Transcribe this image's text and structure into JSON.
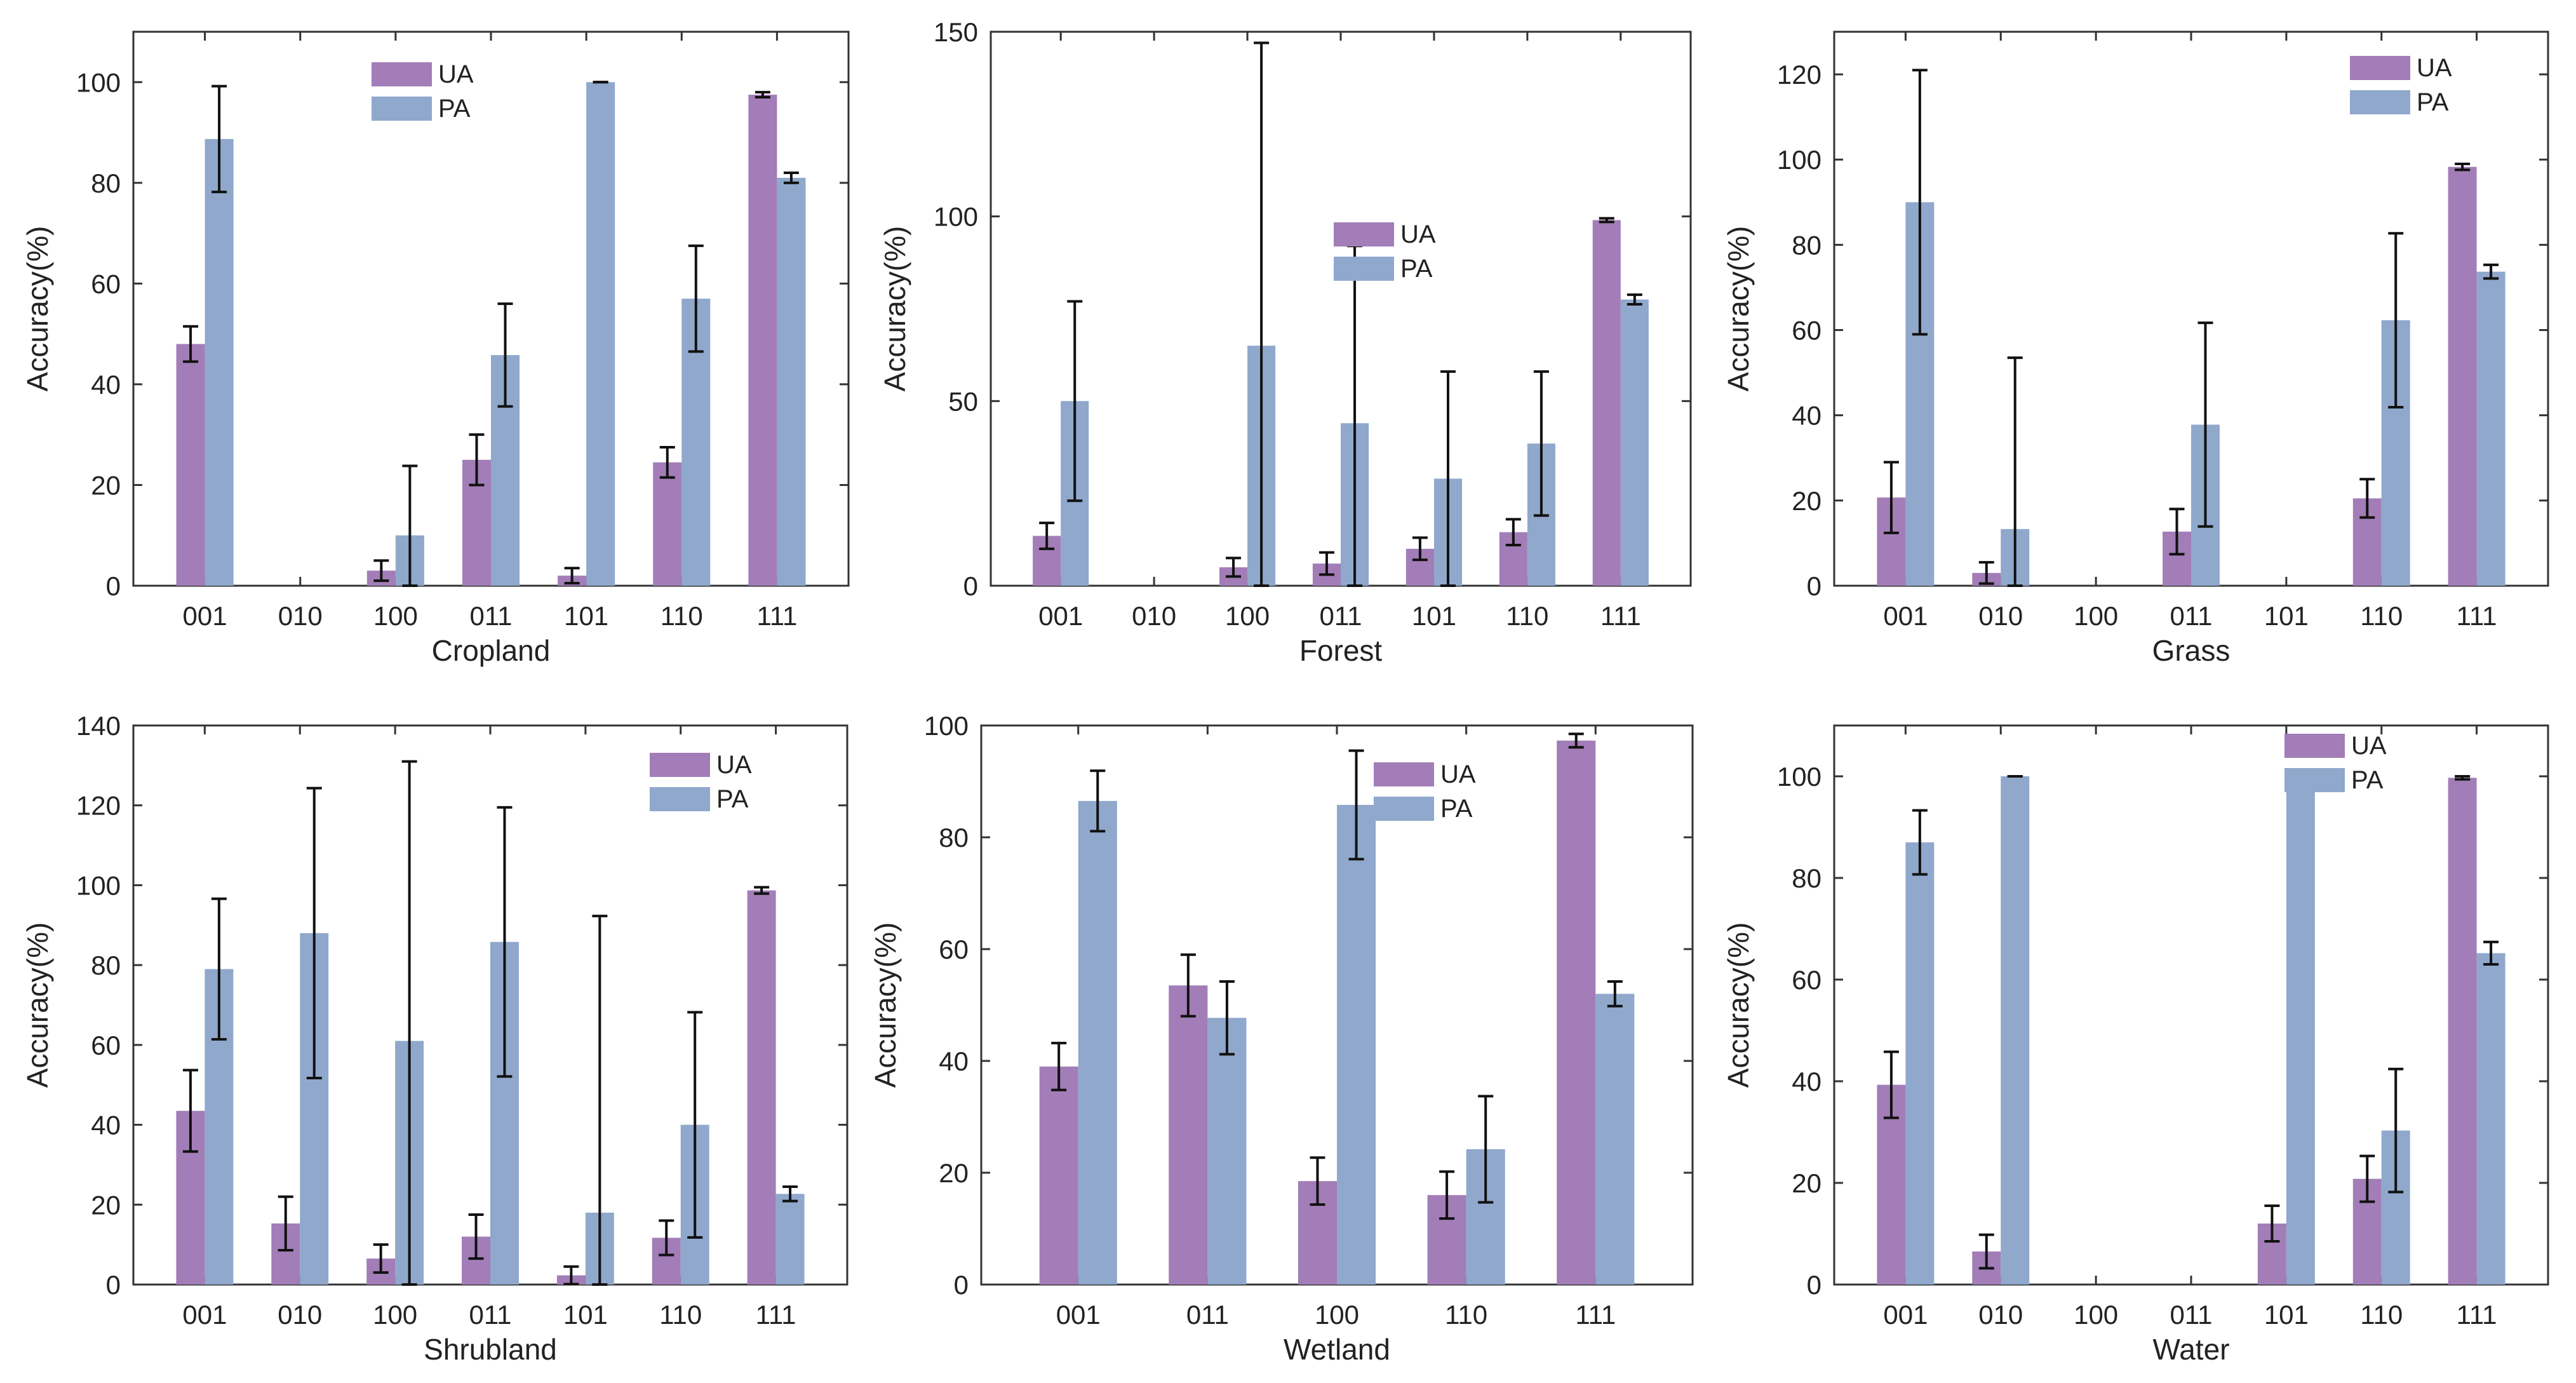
{
  "colors": {
    "ua": "#A27DB7",
    "pa": "#8FA8CC",
    "frame": "#333333",
    "error": "#111111"
  },
  "chart_data": [
    {
      "type": "bar",
      "xlabel": "Cropland",
      "ylabel": "Accuracy(%)",
      "ylim": [
        0,
        110
      ],
      "yticks": [
        0,
        20,
        40,
        60,
        80,
        100
      ],
      "ytick_labels": [
        "0",
        "20",
        "40",
        "60",
        "80",
        "100"
      ],
      "categories": [
        "001",
        "010",
        "100",
        "011",
        "101",
        "110",
        "111"
      ],
      "legend": [
        "UA",
        "PA"
      ],
      "legend_position": "top-center",
      "series": [
        {
          "name": "UA",
          "values": [
            48,
            0,
            3,
            25,
            2,
            24.5,
            97.5
          ],
          "err": [
            3.5,
            0,
            2,
            5,
            1.5,
            3,
            0.5
          ]
        },
        {
          "name": "PA",
          "values": [
            88.7,
            0,
            10,
            45.8,
            100,
            57,
            81
          ],
          "err": [
            10.5,
            0,
            13.8,
            10.2,
            0,
            10.5,
            1
          ]
        }
      ]
    },
    {
      "type": "bar",
      "xlabel": "Forest",
      "ylabel": "Accuracy(%)",
      "ylim": [
        0,
        150
      ],
      "yticks": [
        0,
        50,
        100,
        150
      ],
      "ytick_labels": [
        "0",
        "50",
        "100",
        "150"
      ],
      "categories": [
        "001",
        "010",
        "100",
        "011",
        "101",
        "110",
        "111"
      ],
      "legend": [
        "UA",
        "PA"
      ],
      "legend_position": "center-right",
      "series": [
        {
          "name": "UA",
          "values": [
            13.5,
            0,
            5,
            6,
            10,
            14.5,
            99
          ],
          "err": [
            3.5,
            0,
            2.5,
            3,
            3,
            3.5,
            0.5
          ]
        },
        {
          "name": "PA",
          "values": [
            50,
            0,
            65,
            44,
            29,
            38.5,
            77.5
          ],
          "err": [
            27,
            0,
            82,
            48,
            29,
            19.5,
            1.3
          ]
        }
      ]
    },
    {
      "type": "bar",
      "xlabel": "Grass",
      "ylabel": "Accuracy(%)",
      "ylim": [
        0,
        130
      ],
      "yticks": [
        0,
        20,
        40,
        60,
        80,
        100,
        120
      ],
      "ytick_labels": [
        "0",
        "20",
        "40",
        "60",
        "80",
        "100",
        "120"
      ],
      "categories": [
        "001",
        "010",
        "100",
        "011",
        "101",
        "110",
        "111"
      ],
      "legend": [
        "UA",
        "PA"
      ],
      "legend_position": "top-right",
      "series": [
        {
          "name": "UA",
          "values": [
            20.7,
            3,
            0,
            12.7,
            0,
            20.5,
            98.3
          ],
          "err": [
            8.3,
            2.5,
            0,
            5.3,
            0,
            4.5,
            0.7
          ]
        },
        {
          "name": "PA",
          "values": [
            90,
            13.3,
            0,
            37.8,
            0,
            62.3,
            73.7
          ],
          "err": [
            31,
            40.2,
            0,
            23.9,
            0,
            20.4,
            1.6
          ]
        }
      ]
    },
    {
      "type": "bar",
      "xlabel": "Shrubland",
      "ylabel": "Accuracy(%)",
      "ylim": [
        0,
        140
      ],
      "yticks": [
        0,
        20,
        40,
        60,
        80,
        100,
        120,
        140
      ],
      "ytick_labels": [
        "0",
        "20",
        "40",
        "60",
        "80",
        "100",
        "120",
        "140"
      ],
      "categories": [
        "001",
        "010",
        "100",
        "011",
        "101",
        "110",
        "111"
      ],
      "legend": [
        "UA",
        "PA"
      ],
      "legend_position": "top-right",
      "series": [
        {
          "name": "UA",
          "values": [
            43.5,
            15.3,
            6.5,
            12,
            2.3,
            11.7,
            98.7
          ],
          "err": [
            10.2,
            6.7,
            3.5,
            5.5,
            2.2,
            4.3,
            0.8
          ]
        },
        {
          "name": "PA",
          "values": [
            79,
            88,
            61,
            85.8,
            18,
            40,
            22.7
          ],
          "err": [
            17.6,
            36.3,
            70,
            33.7,
            74.3,
            28.2,
            1.8
          ]
        }
      ]
    },
    {
      "type": "bar",
      "xlabel": "Wetland",
      "ylabel": "Accuracy(%)",
      "ylim": [
        0,
        100
      ],
      "yticks": [
        0,
        20,
        40,
        60,
        80,
        100
      ],
      "ytick_labels": [
        "0",
        "20",
        "40",
        "60",
        "80",
        "100"
      ],
      "categories": [
        "001",
        "011",
        "100",
        "110",
        "111"
      ],
      "legend": [
        "UA",
        "PA"
      ],
      "legend_position": "top-right",
      "series": [
        {
          "name": "UA",
          "values": [
            39,
            53.5,
            18.5,
            16,
            97.3
          ],
          "err": [
            4.2,
            5.5,
            4.2,
            4.2,
            1.2
          ]
        },
        {
          "name": "PA",
          "values": [
            86.5,
            47.7,
            85.8,
            24.2,
            52
          ],
          "err": [
            5.4,
            6.5,
            9.7,
            9.5,
            2.2
          ]
        }
      ]
    },
    {
      "type": "bar",
      "xlabel": "Water",
      "ylabel": "Accuracy(%)",
      "ylim": [
        0,
        110
      ],
      "yticks": [
        0,
        20,
        40,
        60,
        80,
        100
      ],
      "ytick_labels": [
        "0",
        "20",
        "40",
        "60",
        "80",
        "100"
      ],
      "categories": [
        "001",
        "010",
        "100",
        "011",
        "101",
        "110",
        "111"
      ],
      "legend": [
        "UA",
        "PA"
      ],
      "legend_position": "top-right",
      "series": [
        {
          "name": "UA",
          "values": [
            39.3,
            6.5,
            0,
            0,
            12,
            20.8,
            99.7
          ],
          "err": [
            6.5,
            3.3,
            0,
            0,
            3.5,
            4.5,
            0.3
          ]
        },
        {
          "name": "PA",
          "values": [
            87,
            100,
            0,
            0,
            100,
            30.3,
            65.2
          ],
          "err": [
            6.3,
            0,
            0,
            0,
            0,
            12.1,
            2.2
          ]
        }
      ]
    }
  ]
}
